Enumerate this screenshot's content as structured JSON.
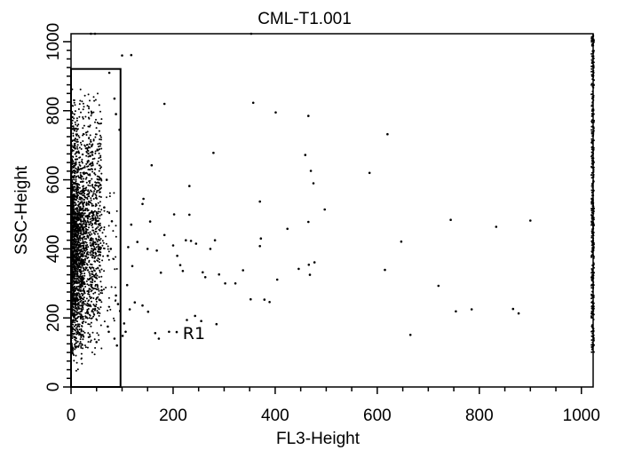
{
  "chart_data": {
    "type": "scatter",
    "title": "CML-T1.001",
    "xlabel": "FL3-Height",
    "ylabel": "SSC-Height",
    "xlim": [
      0,
      1023
    ],
    "ylim": [
      0,
      1023
    ],
    "xticks": [
      0,
      200,
      400,
      600,
      800,
      1000
    ],
    "xtick_labels": [
      "0",
      "200",
      "400",
      "600",
      "800",
      "1000"
    ],
    "yticks": [
      0,
      200,
      400,
      600,
      800,
      1000
    ],
    "ytick_labels": [
      "0",
      "200",
      "400",
      "600",
      "800",
      "1000"
    ],
    "grid": false,
    "regions": [
      {
        "label": "R1",
        "x_range": [
          0,
          97
        ],
        "y_range": [
          0,
          921
        ]
      }
    ],
    "points": [
      [
        158,
        642
      ],
      [
        232,
        582
      ],
      [
        279,
        678
      ],
      [
        357,
        823
      ],
      [
        401,
        795
      ],
      [
        465,
        785
      ],
      [
        620,
        732
      ],
      [
        585,
        620
      ],
      [
        459,
        672
      ],
      [
        470,
        626
      ],
      [
        475,
        590
      ],
      [
        497,
        514
      ],
      [
        465,
        478
      ],
      [
        370,
        537
      ],
      [
        232,
        499
      ],
      [
        202,
        500
      ],
      [
        155,
        479
      ],
      [
        150,
        400
      ],
      [
        168,
        395
      ],
      [
        176,
        331
      ],
      [
        183,
        440
      ],
      [
        200,
        410
      ],
      [
        208,
        380
      ],
      [
        214,
        353
      ],
      [
        219,
        336
      ],
      [
        225,
        425
      ],
      [
        235,
        423
      ],
      [
        245,
        415
      ],
      [
        258,
        332
      ],
      [
        263,
        318
      ],
      [
        273,
        400
      ],
      [
        282,
        425
      ],
      [
        290,
        326
      ],
      [
        302,
        300
      ],
      [
        322,
        300
      ],
      [
        337,
        338
      ],
      [
        352,
        254
      ],
      [
        370,
        408
      ],
      [
        372,
        430
      ],
      [
        379,
        253
      ],
      [
        389,
        246
      ],
      [
        404,
        311
      ],
      [
        424,
        458
      ],
      [
        446,
        342
      ],
      [
        466,
        354
      ],
      [
        468,
        325
      ],
      [
        477,
        361
      ],
      [
        615,
        339
      ],
      [
        647,
        421
      ],
      [
        720,
        293
      ],
      [
        744,
        484
      ],
      [
        754,
        219
      ],
      [
        785,
        225
      ],
      [
        833,
        464
      ],
      [
        866,
        226
      ],
      [
        877,
        213
      ],
      [
        900,
        482
      ],
      [
        665,
        151
      ],
      [
        285,
        182
      ],
      [
        255,
        191
      ],
      [
        243,
        206
      ],
      [
        227,
        194
      ],
      [
        207,
        159
      ],
      [
        192,
        160
      ],
      [
        172,
        140
      ],
      [
        165,
        156
      ],
      [
        151,
        218
      ],
      [
        140,
        236
      ],
      [
        125,
        245
      ],
      [
        115,
        225
      ],
      [
        107,
        160
      ],
      [
        104,
        184
      ],
      [
        110,
        295
      ],
      [
        120,
        350
      ],
      [
        130,
        420
      ],
      [
        140,
        530
      ],
      [
        142,
        545
      ],
      [
        118,
        470
      ],
      [
        112,
        405
      ],
      [
        183,
        820
      ],
      [
        353,
        1023
      ],
      [
        39,
        1023
      ],
      [
        47,
        1023
      ],
      [
        118,
        961
      ],
      [
        100,
        960
      ],
      [
        75,
        910
      ],
      [
        85,
        835
      ],
      [
        88,
        790
      ],
      [
        95,
        745
      ],
      [
        70,
        600
      ],
      [
        65,
        520
      ],
      [
        80,
        480
      ],
      [
        78,
        400
      ],
      [
        72,
        380
      ],
      [
        60,
        280
      ],
      [
        88,
        265
      ],
      [
        92,
        240
      ],
      [
        96,
        220
      ],
      [
        101,
        148
      ],
      [
        90,
        120
      ],
      [
        85,
        140
      ],
      [
        74,
        160
      ],
      [
        72,
        175
      ],
      [
        50,
        130
      ]
    ],
    "density_clusters": [
      {
        "x_range": [
          0,
          60
        ],
        "y_range": [
          70,
          880
        ],
        "count": 1500
      },
      {
        "x_range": [
          0,
          25
        ],
        "y_range": [
          40,
          680
        ],
        "count": 900
      },
      {
        "x_range": [
          0,
          90
        ],
        "y_range": [
          120,
          600
        ],
        "count": 250
      }
    ],
    "axis_edge_events": {
      "x": 1023,
      "y_range": [
        100,
        1023
      ],
      "count": 420
    },
    "colors": {
      "points": "#000000",
      "axes": "#000000",
      "background": "#ffffff"
    }
  }
}
